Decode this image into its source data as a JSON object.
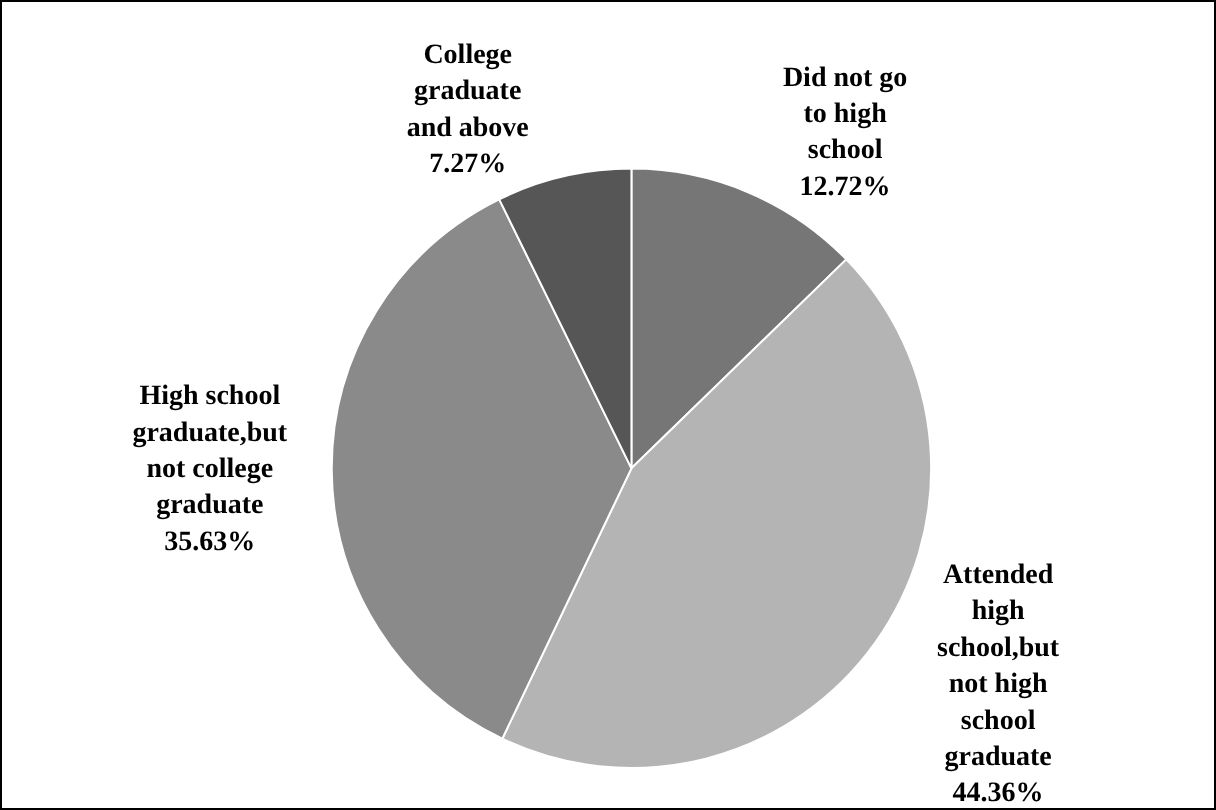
{
  "chart_data": {
    "type": "pie",
    "categories": [
      "Did not go to high school",
      "Attended high school,but not high school graduate",
      "High school graduate,but not college graduate",
      "College graduate and above"
    ],
    "values": [
      12.72,
      44.36,
      35.63,
      7.27
    ],
    "colors": [
      "#767676",
      "#b4b4b4",
      "#8a8a8a",
      "#565656"
    ],
    "value_labels": [
      "12.72%",
      "44.36%",
      "35.63%",
      "7.27%"
    ],
    "legend": false
  }
}
